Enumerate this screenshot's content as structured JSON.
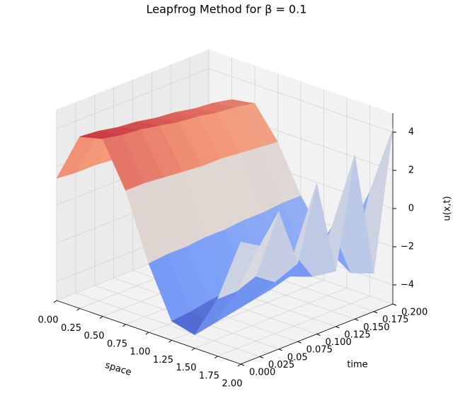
{
  "chart_data": {
    "type": "surface",
    "title": "Leapfrog Method for β = 0.1",
    "xlabel": "space",
    "ylabel": "time",
    "zlabel": "u(x,t)",
    "x": [
      0,
      0.25,
      0.5,
      0.75,
      1,
      1.25,
      1.5,
      1.75,
      2
    ],
    "y": [
      0,
      0.025,
      0.05,
      0.075,
      0.1,
      0.125,
      0.15,
      0.175,
      0.2
    ],
    "z": [
      [
        1.4,
        4.0,
        4.3,
        2.0,
        -1.4,
        -4.0,
        -4.3,
        -2.0,
        1.4
      ],
      [
        1.3,
        3.9,
        4.1,
        2.0,
        -1.3,
        -3.9,
        -4.1,
        -2.0,
        0.8
      ],
      [
        1.3,
        3.7,
        4.0,
        1.9,
        -1.3,
        -3.7,
        -3.9,
        -1.6,
        2.2
      ],
      [
        1.2,
        3.6,
        3.8,
        1.8,
        -1.2,
        -3.6,
        -3.7,
        -2.3,
        -0.9
      ],
      [
        1.2,
        3.4,
        3.6,
        1.7,
        -1.2,
        -3.4,
        -3.5,
        -1.2,
        2.9
      ],
      [
        1.1,
        3.3,
        3.5,
        1.7,
        -1.1,
        -3.3,
        -3.2,
        -2.8,
        -2.1
      ],
      [
        1.1,
        3.1,
        3.3,
        1.6,
        -1.1,
        -3.1,
        -2.9,
        -0.6,
        3.6
      ],
      [
        1.0,
        3.0,
        3.2,
        1.5,
        -1.0,
        -3.0,
        -2.6,
        -3.4,
        -3.0
      ],
      [
        1.0,
        2.8,
        3.0,
        1.4,
        -1.0,
        -2.8,
        -2.4,
        0.5,
        4.2
      ]
    ],
    "colormap": "coolwarm",
    "xlim": [
      0,
      2
    ],
    "ylim": [
      0,
      0.2
    ],
    "zlim": [
      -5,
      5
    ],
    "xticks": [
      {
        "value": 0,
        "label": "0.00"
      },
      {
        "value": 0.25,
        "label": "0.25"
      },
      {
        "value": 0.5,
        "label": "0.50"
      },
      {
        "value": 0.75,
        "label": "0.75"
      },
      {
        "value": 1,
        "label": "1.00"
      },
      {
        "value": 1.25,
        "label": "1.25"
      },
      {
        "value": 1.5,
        "label": "1.50"
      },
      {
        "value": 1.75,
        "label": "1.75"
      },
      {
        "value": 2,
        "label": "2.00"
      }
    ],
    "yticks": [
      {
        "value": 0,
        "label": "0.000"
      },
      0.025,
      0.05,
      0.075,
      {
        "value": 0.1,
        "label": "0.100"
      },
      0.125,
      {
        "value": 0.15,
        "label": "0.150"
      },
      0.175,
      {
        "value": 0.2,
        "label": "0.200"
      }
    ],
    "zticks": [
      {
        "value": -4,
        "label": "−4"
      },
      {
        "value": -2,
        "label": "−2"
      },
      0,
      2,
      4
    ],
    "grid": true
  }
}
